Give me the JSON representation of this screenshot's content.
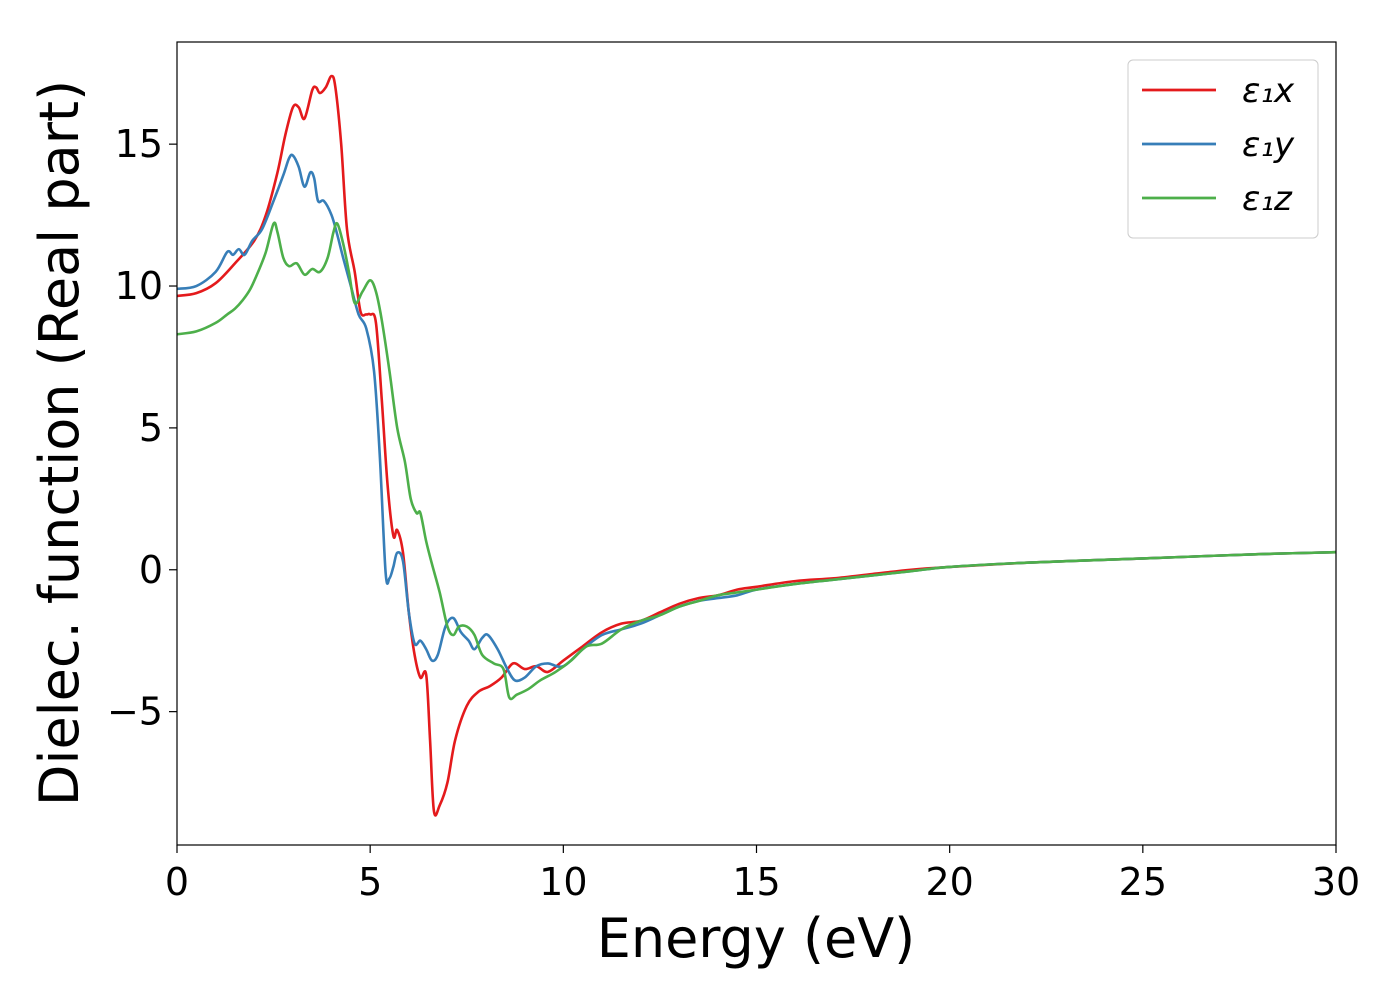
{
  "chart_data": {
    "type": "line",
    "title": "",
    "xlabel": "Energy (eV)",
    "ylabel": "Dielec. function (Real part)",
    "xlim": [
      0,
      30
    ],
    "ylim": [
      -9.7,
      18.6
    ],
    "xticks": [
      0,
      5,
      10,
      15,
      20,
      25,
      30
    ],
    "yticks": [
      -5,
      0,
      5,
      10,
      15
    ],
    "ytick_labels": [
      "−5",
      "0",
      "5",
      "10",
      "15"
    ],
    "grid": false,
    "legend_position": "top-right",
    "series": [
      {
        "name": "ε₁x",
        "color": "#e41a1c",
        "points": [
          [
            0,
            9.65
          ],
          [
            0.5,
            9.75
          ],
          [
            1.0,
            10.1
          ],
          [
            1.5,
            10.8
          ],
          [
            2.0,
            11.6
          ],
          [
            2.3,
            12.5
          ],
          [
            2.6,
            14.0
          ],
          [
            2.8,
            15.3
          ],
          [
            3.0,
            16.3
          ],
          [
            3.15,
            16.3
          ],
          [
            3.3,
            15.9
          ],
          [
            3.5,
            16.9
          ],
          [
            3.6,
            17.0
          ],
          [
            3.7,
            16.8
          ],
          [
            3.85,
            17.0
          ],
          [
            4.0,
            17.4
          ],
          [
            4.1,
            17.0
          ],
          [
            4.25,
            15.0
          ],
          [
            4.4,
            12.0
          ],
          [
            4.6,
            10.5
          ],
          [
            4.75,
            9.1
          ],
          [
            4.9,
            9.0
          ],
          [
            5.0,
            9.0
          ],
          [
            5.15,
            8.7
          ],
          [
            5.3,
            6.0
          ],
          [
            5.45,
            3.0
          ],
          [
            5.6,
            1.2
          ],
          [
            5.7,
            1.4
          ],
          [
            5.85,
            0.6
          ],
          [
            6.0,
            -1.5
          ],
          [
            6.15,
            -3.0
          ],
          [
            6.3,
            -3.8
          ],
          [
            6.45,
            -3.7
          ],
          [
            6.55,
            -6.0
          ],
          [
            6.65,
            -8.5
          ],
          [
            6.8,
            -8.3
          ],
          [
            7.0,
            -7.5
          ],
          [
            7.2,
            -6.0
          ],
          [
            7.5,
            -4.8
          ],
          [
            7.8,
            -4.3
          ],
          [
            8.1,
            -4.1
          ],
          [
            8.4,
            -3.8
          ],
          [
            8.7,
            -3.3
          ],
          [
            9.0,
            -3.5
          ],
          [
            9.3,
            -3.4
          ],
          [
            9.6,
            -3.6
          ],
          [
            10.0,
            -3.2
          ],
          [
            10.5,
            -2.7
          ],
          [
            11.0,
            -2.2
          ],
          [
            11.5,
            -1.9
          ],
          [
            12.0,
            -1.8
          ],
          [
            12.5,
            -1.5
          ],
          [
            13.0,
            -1.2
          ],
          [
            13.5,
            -1.0
          ],
          [
            14.0,
            -0.9
          ],
          [
            14.5,
            -0.7
          ],
          [
            15.0,
            -0.6
          ],
          [
            16.0,
            -0.4
          ],
          [
            17.0,
            -0.3
          ],
          [
            18.0,
            -0.15
          ],
          [
            19.0,
            0.0
          ],
          [
            20.0,
            0.1
          ],
          [
            22.0,
            0.25
          ],
          [
            24.0,
            0.35
          ],
          [
            26.0,
            0.45
          ],
          [
            28.0,
            0.55
          ],
          [
            30.0,
            0.62
          ]
        ]
      },
      {
        "name": "ε₁y",
        "color": "#377eb8",
        "points": [
          [
            0,
            9.9
          ],
          [
            0.5,
            10.0
          ],
          [
            1.0,
            10.5
          ],
          [
            1.3,
            11.2
          ],
          [
            1.45,
            11.1
          ],
          [
            1.6,
            11.3
          ],
          [
            1.75,
            11.1
          ],
          [
            1.95,
            11.6
          ],
          [
            2.2,
            12.0
          ],
          [
            2.5,
            13.0
          ],
          [
            2.75,
            13.9
          ],
          [
            2.9,
            14.5
          ],
          [
            3.0,
            14.6
          ],
          [
            3.15,
            14.2
          ],
          [
            3.3,
            13.5
          ],
          [
            3.45,
            14.0
          ],
          [
            3.55,
            13.8
          ],
          [
            3.65,
            13.0
          ],
          [
            3.8,
            13.0
          ],
          [
            4.0,
            12.5
          ],
          [
            4.15,
            11.8
          ],
          [
            4.3,
            11.0
          ],
          [
            4.5,
            10.0
          ],
          [
            4.7,
            9.0
          ],
          [
            4.9,
            8.5
          ],
          [
            5.1,
            7.0
          ],
          [
            5.25,
            4.0
          ],
          [
            5.4,
            -0.1
          ],
          [
            5.5,
            -0.3
          ],
          [
            5.6,
            0.1
          ],
          [
            5.7,
            0.6
          ],
          [
            5.85,
            0.3
          ],
          [
            6.0,
            -1.5
          ],
          [
            6.15,
            -2.6
          ],
          [
            6.3,
            -2.5
          ],
          [
            6.45,
            -2.8
          ],
          [
            6.6,
            -3.2
          ],
          [
            6.75,
            -3.0
          ],
          [
            6.95,
            -2.0
          ],
          [
            7.15,
            -1.7
          ],
          [
            7.35,
            -2.2
          ],
          [
            7.55,
            -2.5
          ],
          [
            7.7,
            -2.8
          ],
          [
            7.9,
            -2.4
          ],
          [
            8.05,
            -2.3
          ],
          [
            8.3,
            -2.8
          ],
          [
            8.55,
            -3.5
          ],
          [
            8.75,
            -3.9
          ],
          [
            9.0,
            -3.8
          ],
          [
            9.3,
            -3.4
          ],
          [
            9.6,
            -3.3
          ],
          [
            10.0,
            -3.4
          ],
          [
            10.5,
            -2.8
          ],
          [
            11.0,
            -2.3
          ],
          [
            11.5,
            -2.1
          ],
          [
            12.0,
            -1.9
          ],
          [
            12.5,
            -1.6
          ],
          [
            13.0,
            -1.3
          ],
          [
            13.5,
            -1.1
          ],
          [
            14.0,
            -1.0
          ],
          [
            14.5,
            -0.9
          ],
          [
            15.0,
            -0.7
          ],
          [
            16.0,
            -0.5
          ],
          [
            17.0,
            -0.35
          ],
          [
            18.0,
            -0.2
          ],
          [
            19.0,
            -0.05
          ],
          [
            20.0,
            0.1
          ],
          [
            22.0,
            0.25
          ],
          [
            24.0,
            0.35
          ],
          [
            26.0,
            0.45
          ],
          [
            28.0,
            0.55
          ],
          [
            30.0,
            0.62
          ]
        ]
      },
      {
        "name": "ε₁z",
        "color": "#4daf4a",
        "points": [
          [
            0,
            8.3
          ],
          [
            0.5,
            8.4
          ],
          [
            1.0,
            8.7
          ],
          [
            1.3,
            9.0
          ],
          [
            1.5,
            9.2
          ],
          [
            1.7,
            9.5
          ],
          [
            1.9,
            9.9
          ],
          [
            2.1,
            10.5
          ],
          [
            2.3,
            11.2
          ],
          [
            2.5,
            12.2
          ],
          [
            2.6,
            11.9
          ],
          [
            2.75,
            11.0
          ],
          [
            2.9,
            10.7
          ],
          [
            3.1,
            10.8
          ],
          [
            3.3,
            10.4
          ],
          [
            3.5,
            10.6
          ],
          [
            3.7,
            10.5
          ],
          [
            3.9,
            11.0
          ],
          [
            4.05,
            11.9
          ],
          [
            4.15,
            12.2
          ],
          [
            4.3,
            11.5
          ],
          [
            4.45,
            10.5
          ],
          [
            4.6,
            9.4
          ],
          [
            4.8,
            9.8
          ],
          [
            5.0,
            10.2
          ],
          [
            5.15,
            9.8
          ],
          [
            5.3,
            8.8
          ],
          [
            5.5,
            7.0
          ],
          [
            5.7,
            5.0
          ],
          [
            5.9,
            3.8
          ],
          [
            6.05,
            2.5
          ],
          [
            6.2,
            2.0
          ],
          [
            6.3,
            2.0
          ],
          [
            6.45,
            1.0
          ],
          [
            6.6,
            0.2
          ],
          [
            6.8,
            -0.8
          ],
          [
            7.0,
            -2.0
          ],
          [
            7.15,
            -2.3
          ],
          [
            7.3,
            -2.0
          ],
          [
            7.5,
            -2.0
          ],
          [
            7.7,
            -2.3
          ],
          [
            7.9,
            -3.0
          ],
          [
            8.2,
            -3.3
          ],
          [
            8.45,
            -3.5
          ],
          [
            8.6,
            -4.5
          ],
          [
            8.8,
            -4.4
          ],
          [
            9.1,
            -4.2
          ],
          [
            9.4,
            -3.9
          ],
          [
            9.8,
            -3.6
          ],
          [
            10.2,
            -3.2
          ],
          [
            10.6,
            -2.7
          ],
          [
            11.0,
            -2.6
          ],
          [
            11.5,
            -2.1
          ],
          [
            12.0,
            -1.8
          ],
          [
            12.5,
            -1.6
          ],
          [
            13.0,
            -1.3
          ],
          [
            13.5,
            -1.1
          ],
          [
            14.0,
            -0.9
          ],
          [
            14.5,
            -0.8
          ],
          [
            15.0,
            -0.7
          ],
          [
            16.0,
            -0.5
          ],
          [
            17.0,
            -0.35
          ],
          [
            18.0,
            -0.2
          ],
          [
            19.0,
            -0.05
          ],
          [
            20.0,
            0.1
          ],
          [
            22.0,
            0.25
          ],
          [
            24.0,
            0.35
          ],
          [
            26.0,
            0.45
          ],
          [
            28.0,
            0.55
          ],
          [
            30.0,
            0.62
          ]
        ]
      }
    ]
  }
}
